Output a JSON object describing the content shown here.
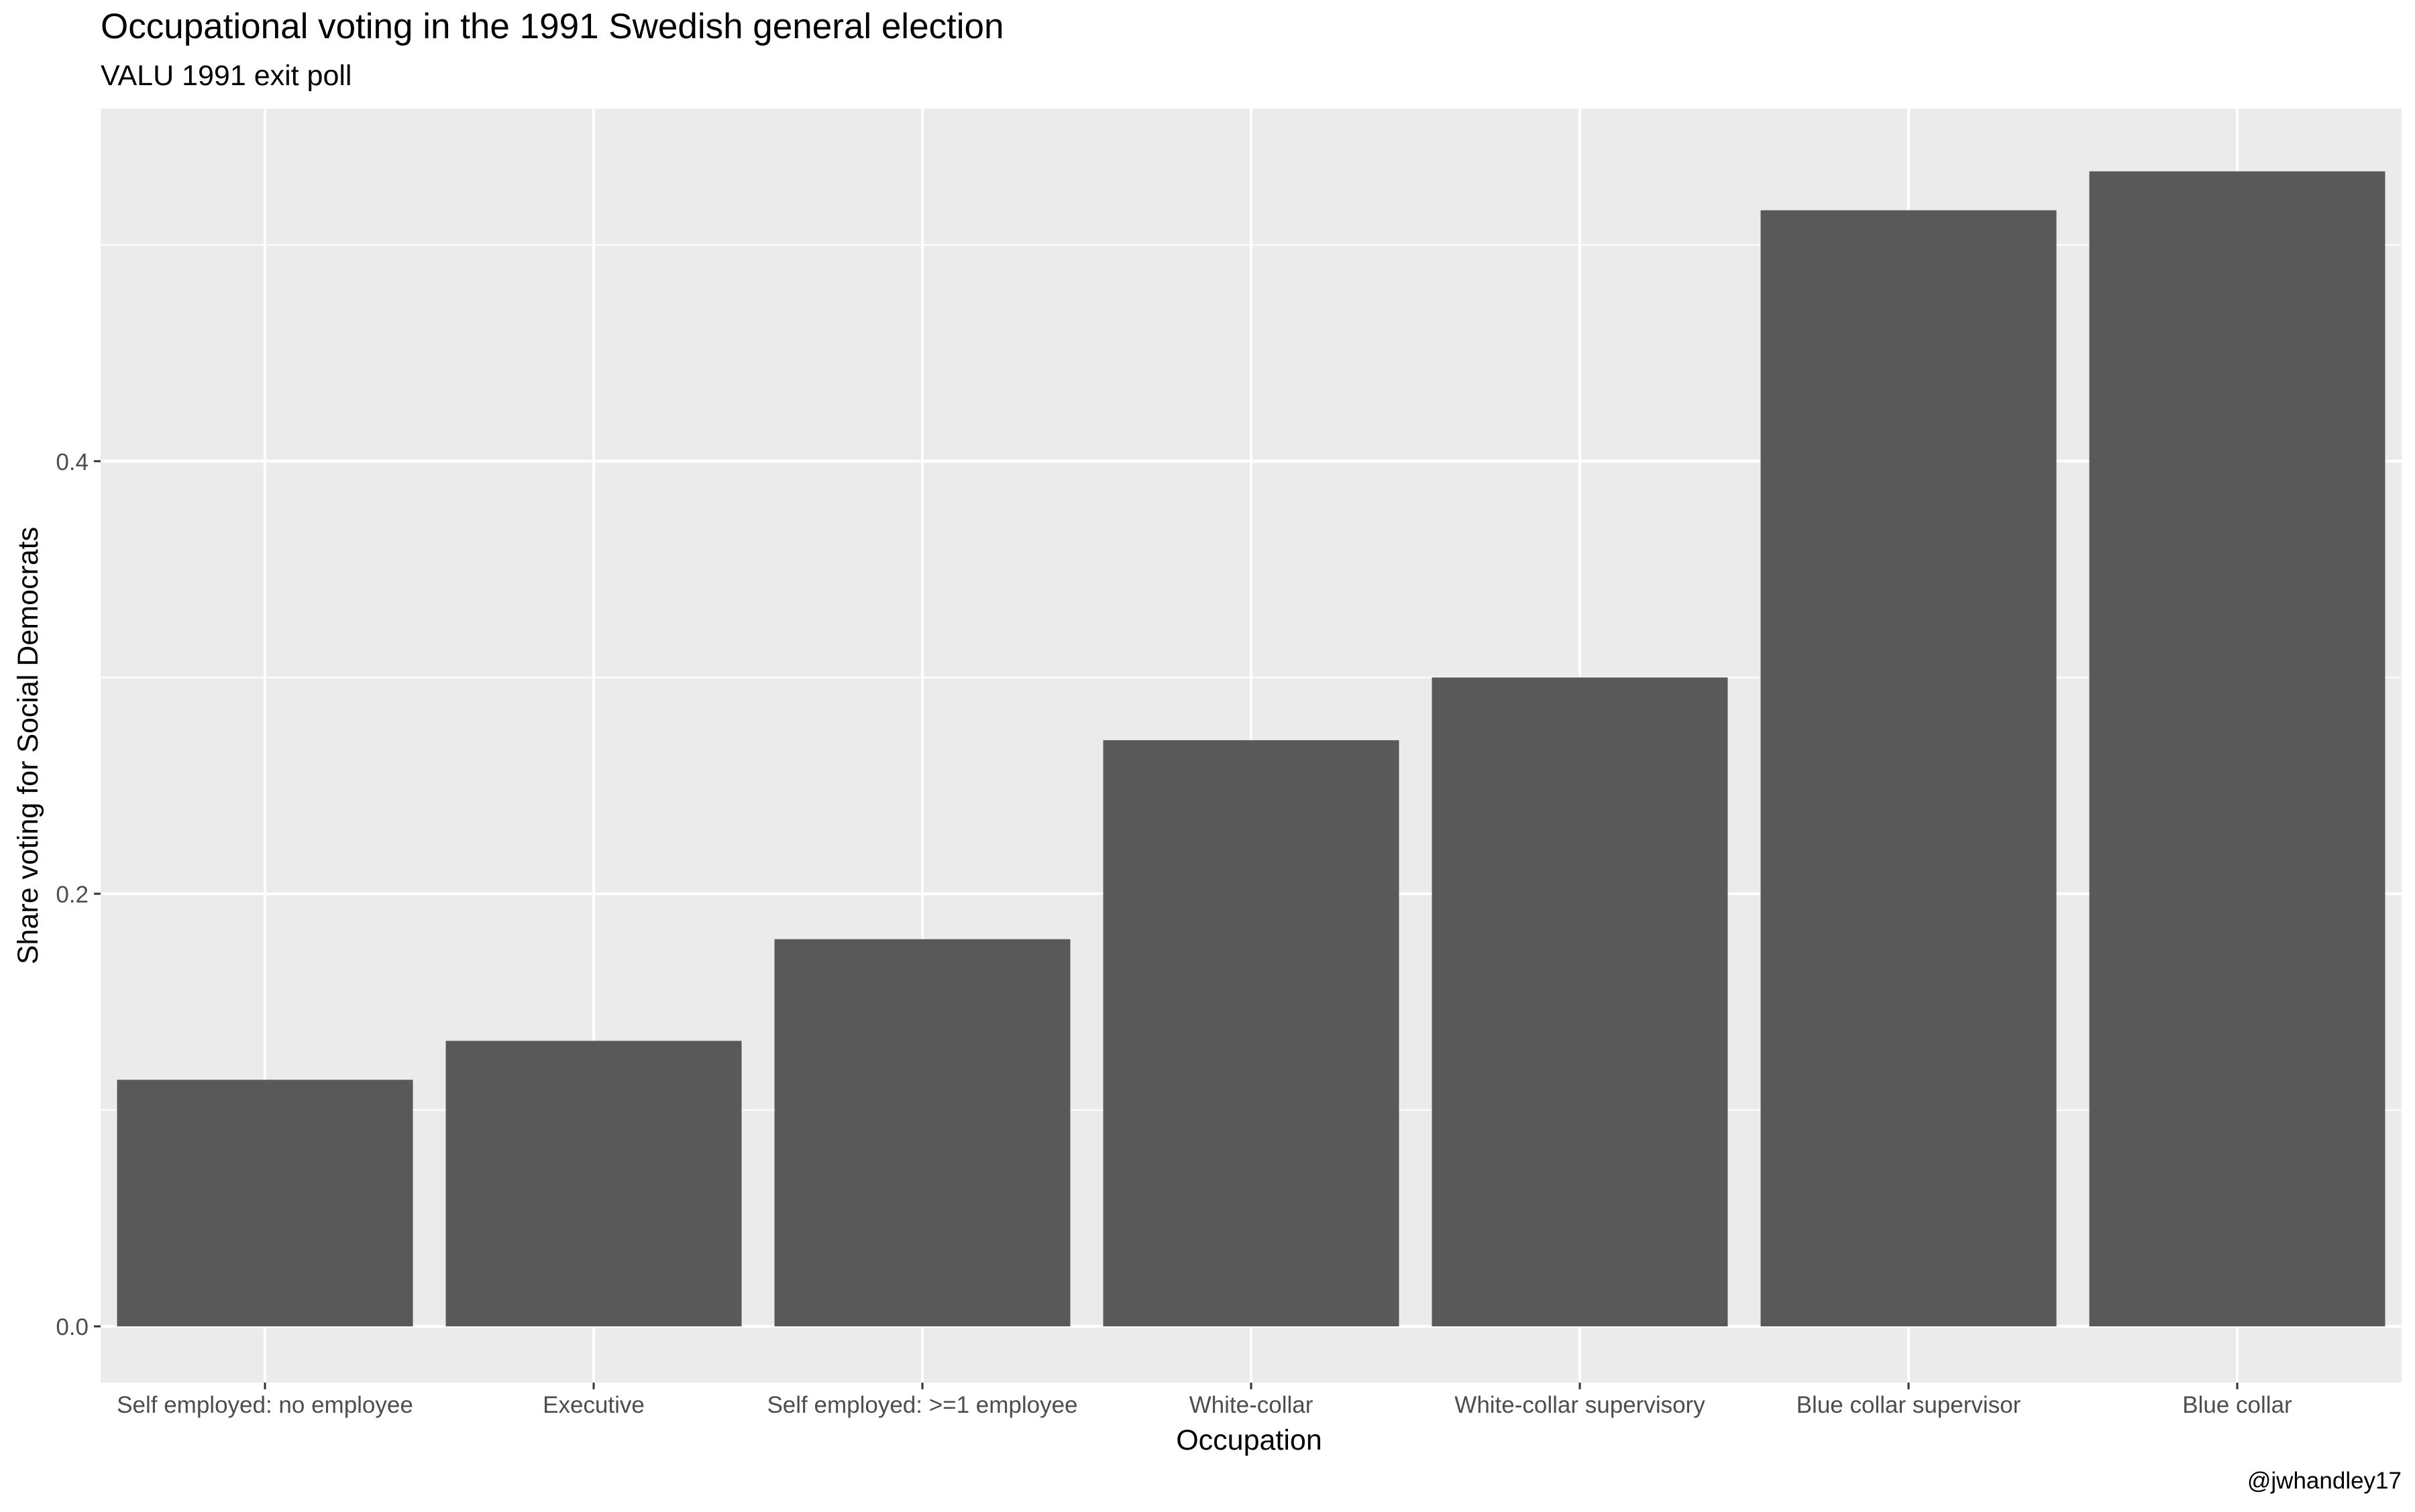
{
  "chart_data": {
    "type": "bar",
    "title": "Occupational voting in the 1991 Swedish general election",
    "subtitle": "VALU 1991 exit poll",
    "xlabel": "Occupation",
    "ylabel": "Share voting for Social Democrats",
    "caption": "@jwhandley17",
    "categories": [
      "Self employed: no employee",
      "Executive",
      "Self employed: >=1 employee",
      "White-collar",
      "White-collar supervisory",
      "Blue collar supervisor",
      "Blue collar"
    ],
    "values": [
      0.114,
      0.132,
      0.179,
      0.271,
      0.3,
      0.516,
      0.534
    ],
    "ylim": [
      -0.026,
      0.563
    ],
    "yticks": [
      0.0,
      0.2,
      0.4
    ],
    "ytick_labels": [
      "0.0",
      "0.2",
      "0.4"
    ],
    "grid": true,
    "legend": "none",
    "colors": {
      "bar": "#595959",
      "panel_background": "#ebebeb",
      "gridline": "#ffffff",
      "tick_label": "#4d4d4d",
      "text": "#000000"
    }
  }
}
